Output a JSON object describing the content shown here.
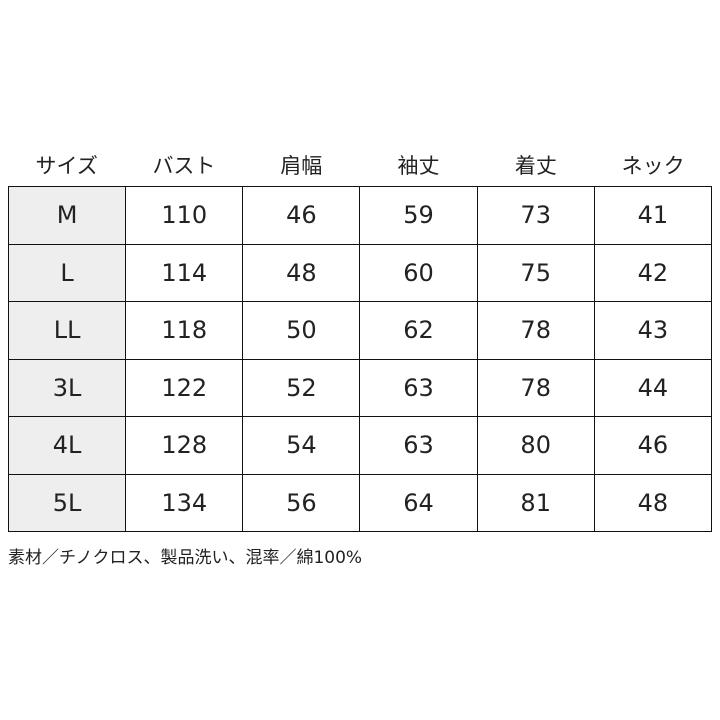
{
  "headers": [
    "サイズ",
    "バスト",
    "肩幅",
    "袖丈",
    "着丈",
    "ネック"
  ],
  "rows": [
    [
      "M",
      "110",
      "46",
      "59",
      "73",
      "41"
    ],
    [
      "L",
      "114",
      "48",
      "60",
      "75",
      "42"
    ],
    [
      "LL",
      "118",
      "50",
      "62",
      "78",
      "43"
    ],
    [
      "3L",
      "122",
      "52",
      "63",
      "78",
      "44"
    ],
    [
      "4L",
      "128",
      "54",
      "63",
      "80",
      "46"
    ],
    [
      "5L",
      "134",
      "56",
      "64",
      "81",
      "48"
    ]
  ],
  "note": "素材／チノクロス、製品洗い、混率／綿100%",
  "colors": {
    "size_column_bg": "#eeeeee",
    "border": "#111111"
  }
}
